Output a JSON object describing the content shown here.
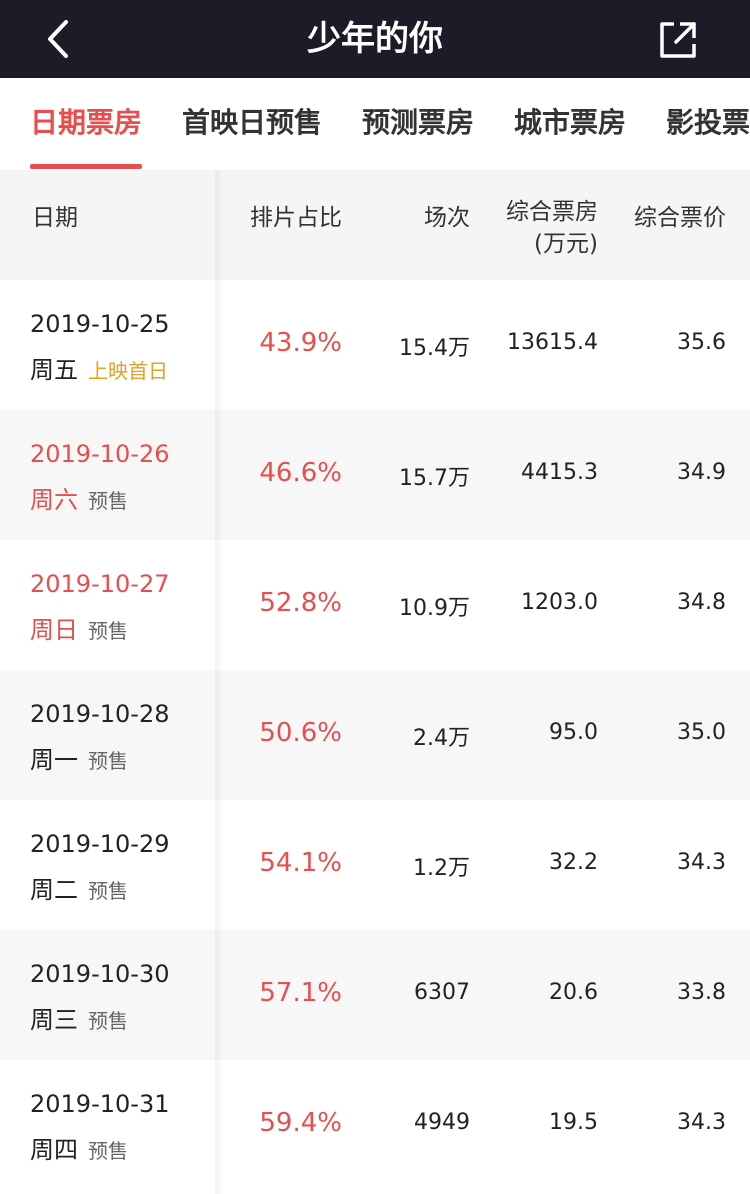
{
  "topbar": {
    "title": "少年的你",
    "back_icon": "chevron-left-icon",
    "share_icon": "share-icon"
  },
  "tabs": [
    {
      "label": "日期票房",
      "active": true
    },
    {
      "label": "首映日预售",
      "active": false
    },
    {
      "label": "预测票房",
      "active": false
    },
    {
      "label": "城市票房",
      "active": false
    },
    {
      "label": "影投票",
      "active": false
    }
  ],
  "table": {
    "headers": {
      "date": "日期",
      "ratio": "排片占比",
      "shows": "场次",
      "box_line1": "综合票房",
      "box_line2": "(万元)",
      "price": "综合票价"
    },
    "rows": [
      {
        "date": "2019-10-25",
        "week": "周五",
        "tag": "上映首日",
        "ratio": "43.9%",
        "shows": "15.4万",
        "box": "13615.4",
        "price": "35.6"
      },
      {
        "date": "2019-10-26",
        "week": "周六",
        "tag": "预售",
        "ratio": "46.6%",
        "shows": "15.7万",
        "box": "4415.3",
        "price": "34.9"
      },
      {
        "date": "2019-10-27",
        "week": "周日",
        "tag": "预售",
        "ratio": "52.8%",
        "shows": "10.9万",
        "box": "1203.0",
        "price": "34.8"
      },
      {
        "date": "2019-10-28",
        "week": "周一",
        "tag": "预售",
        "ratio": "50.6%",
        "shows": "2.4万",
        "box": "95.0",
        "price": "35.0"
      },
      {
        "date": "2019-10-29",
        "week": "周二",
        "tag": "预售",
        "ratio": "54.1%",
        "shows": "1.2万",
        "box": "32.2",
        "price": "34.3"
      },
      {
        "date": "2019-10-30",
        "week": "周三",
        "tag": "预售",
        "ratio": "57.1%",
        "shows": "6307",
        "box": "20.6",
        "price": "33.8"
      },
      {
        "date": "2019-10-31",
        "week": "周四",
        "tag": "预售",
        "ratio": "59.4%",
        "shows": "4949",
        "box": "19.5",
        "price": "34.3"
      }
    ]
  },
  "colors": {
    "topbar_bg": "#1c1c28",
    "accent_red": "#e84e4e",
    "first_day_tag": "#e8a020"
  }
}
